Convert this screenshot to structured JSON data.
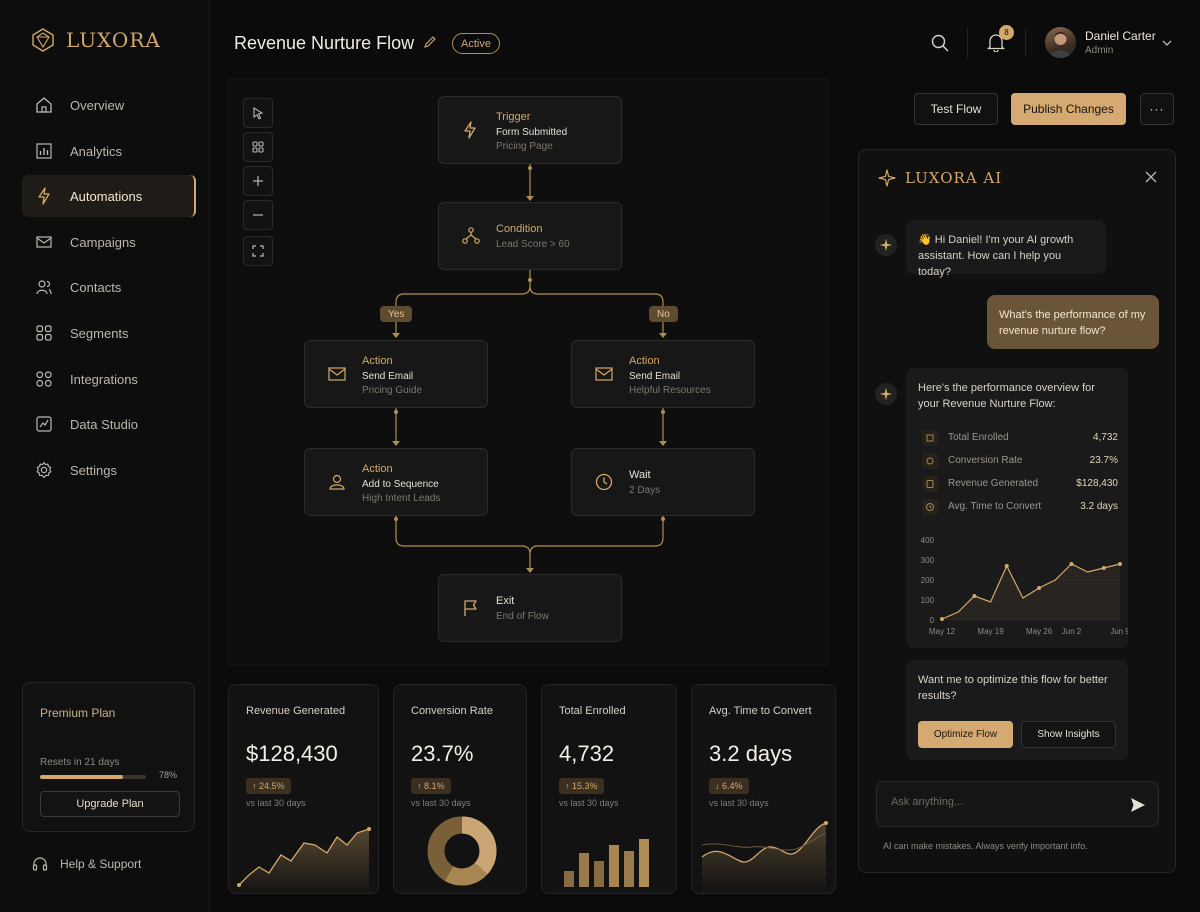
{
  "brand": {
    "name": "LUXORA",
    "accent": "#d4a86a"
  },
  "sidebar": {
    "items": [
      {
        "label": "Overview",
        "icon": "home-icon"
      },
      {
        "label": "Analytics",
        "icon": "bar-chart-icon"
      },
      {
        "label": "Automations",
        "icon": "lightning-icon",
        "active": true
      },
      {
        "label": "Campaigns",
        "icon": "mail-icon"
      },
      {
        "label": "Contacts",
        "icon": "users-icon"
      },
      {
        "label": "Segments",
        "icon": "grid-icon"
      },
      {
        "label": "Integrations",
        "icon": "grid-icon"
      },
      {
        "label": "Data Studio",
        "icon": "chart-box-icon"
      },
      {
        "label": "Settings",
        "icon": "gear-icon"
      }
    ],
    "plan": {
      "title": "Premium Plan",
      "resets": "Resets in 21 days",
      "usage_pct": "78%",
      "usage_fraction": 0.78,
      "button": "Upgrade Plan"
    },
    "help": "Help & Support"
  },
  "header": {
    "title": "Revenue Nurture Flow",
    "status": "Active",
    "notifications": "8",
    "user": {
      "name": "Daniel Carter",
      "role": "Admin"
    }
  },
  "actions": {
    "test": "Test Flow",
    "publish": "Publish Changes",
    "more": "···"
  },
  "flow": {
    "trigger": {
      "type": "Trigger",
      "title": "Form Submitted",
      "sub": "Pricing Page"
    },
    "condition": {
      "type": "Condition",
      "title": "Lead Score > 60"
    },
    "yes": "Yes",
    "no": "No",
    "action1": {
      "type": "Action",
      "title": "Send Email",
      "sub": "Pricing Guide"
    },
    "action2": {
      "type": "Action",
      "title": "Send Email",
      "sub": "Helpful Resources"
    },
    "action3": {
      "type": "Action",
      "title": "Add to Sequence",
      "sub": "High Intent Leads"
    },
    "wait": {
      "type": "Wait",
      "title": "2 Days"
    },
    "exit": {
      "type": "Exit",
      "title": "End of Flow"
    }
  },
  "ai": {
    "title": "LUXORA AI",
    "greeting": "👋 Hi Daniel! I'm your AI growth assistant. How can I help you today?",
    "user_question": "What's the performance of my revenue nurture flow?",
    "overview_intro": "Here's the performance overview for your Revenue Nurture Flow:",
    "stats": [
      {
        "label": "Total Enrolled",
        "value": "4,732"
      },
      {
        "label": "Conversion Rate",
        "value": "23.7%"
      },
      {
        "label": "Revenue Generated",
        "value": "$128,430"
      },
      {
        "label": "Avg. Time to Convert",
        "value": "3.2 days"
      }
    ],
    "optimize_prompt": "Want me to optimize this flow for better results?",
    "optimize_btn": "Optimize Flow",
    "insights_btn": "Show Insights",
    "input_placeholder": "Ask anything...",
    "disclaimer": "AI can make mistakes. Always verify important info."
  },
  "chart_data": {
    "type": "line",
    "x": [
      "May 12",
      "May 15",
      "May 17",
      "May 19",
      "May 22",
      "May 24",
      "May 26",
      "May 29",
      "Jun 2",
      "Jun 5",
      "Jun 7",
      "Jun 9"
    ],
    "values": [
      5,
      40,
      120,
      90,
      270,
      110,
      160,
      200,
      280,
      240,
      260,
      280
    ],
    "y_ticks": [
      0,
      100,
      200,
      300,
      400
    ],
    "x_tick_labels": [
      "May 12",
      "May 19",
      "May 26",
      "Jun 2",
      "Jun 9"
    ],
    "ylim": [
      0,
      400
    ]
  },
  "metrics": [
    {
      "label": "Revenue Generated",
      "value": "$128,430",
      "delta": "↑ 24.5%",
      "note": "vs last 30 days"
    },
    {
      "label": "Conversion Rate",
      "value": "23.7%",
      "delta": "↑ 8.1%",
      "note": "vs last 30 days"
    },
    {
      "label": "Total Enrolled",
      "value": "4,732",
      "delta": "↑ 15.3%",
      "note": "vs last 30 days"
    },
    {
      "label": "Avg. Time to Convert",
      "value": "3.2 days",
      "delta": "↓ 6.4%",
      "note": "vs last 30 days"
    }
  ]
}
